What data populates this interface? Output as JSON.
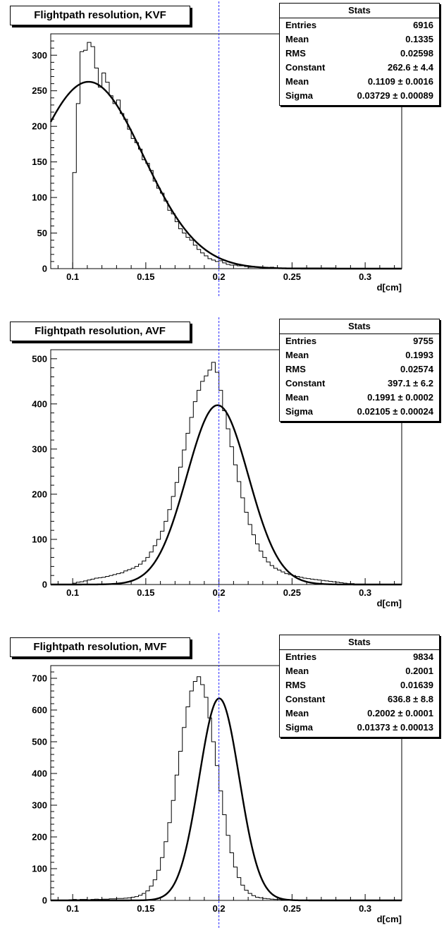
{
  "chart_data": [
    {
      "type": "histogram",
      "title": "Flightpath resolution, KVF",
      "xlabel": "d[cm]",
      "xlim": [
        0.085,
        0.325
      ],
      "ylim": [
        0,
        330
      ],
      "xticks": [
        "0.1",
        "0.15",
        "0.2",
        "0.25",
        "0.3"
      ],
      "yticks": [
        "0",
        "50",
        "100",
        "150",
        "200",
        "250",
        "300"
      ],
      "reference_line_x": 0.2,
      "reference_line_color": "#2a2aff",
      "stats_title": "Stats",
      "stats": [
        {
          "label": "Entries",
          "value": "6916"
        },
        {
          "label": "Mean",
          "value": "0.1335"
        },
        {
          "label": "RMS",
          "value": "0.02598"
        },
        {
          "label": "Constant",
          "value": "262.6 ± 4.4"
        },
        {
          "label": "Mean",
          "value": "0.1109 ± 0.0016"
        },
        {
          "label": "Sigma",
          "value": "0.03729 ± 0.00089"
        }
      ],
      "bin_width": 0.0025,
      "bin_start": 0.0975,
      "counts": [
        0,
        135,
        232,
        305,
        307,
        318,
        312,
        282,
        255,
        275,
        262,
        243,
        232,
        237,
        218,
        210,
        196,
        183,
        177,
        168,
        153,
        148,
        138,
        123,
        113,
        106,
        95,
        82,
        77,
        66,
        56,
        50,
        44,
        40,
        33,
        27,
        22,
        18,
        14,
        12,
        10,
        11,
        8,
        6,
        5,
        5,
        4,
        4,
        3,
        2,
        2,
        2,
        2,
        2,
        1,
        2,
        1,
        1,
        1,
        1,
        1,
        1,
        1,
        1,
        1,
        1,
        1,
        1,
        1,
        1,
        1,
        1,
        1,
        0,
        0,
        0,
        0,
        0,
        0,
        0,
        0,
        0,
        0,
        0,
        0,
        0,
        0,
        0,
        0,
        0
      ],
      "fit": {
        "type": "gaussian",
        "constant": 262.6,
        "mean": 0.1109,
        "sigma": 0.03729,
        "xmin": 0.085,
        "xmax": 0.325
      }
    },
    {
      "type": "histogram",
      "title": "Flightpath resolution, AVF",
      "xlabel": "d[cm]",
      "xlim": [
        0.085,
        0.325
      ],
      "ylim": [
        0,
        520
      ],
      "xticks": [
        "0.1",
        "0.15",
        "0.2",
        "0.25",
        "0.3"
      ],
      "yticks": [
        "0",
        "100",
        "200",
        "300",
        "400",
        "500"
      ],
      "reference_line_x": 0.2,
      "reference_line_color": "#2a2aff",
      "stats_title": "Stats",
      "stats": [
        {
          "label": "Entries",
          "value": "9755"
        },
        {
          "label": "Mean",
          "value": "0.1993"
        },
        {
          "label": "RMS",
          "value": "0.02574"
        },
        {
          "label": "Constant",
          "value": "397.1 ± 6.2"
        },
        {
          "label": "Mean",
          "value": "0.1991 ± 0.0002"
        },
        {
          "label": "Sigma",
          "value": "0.02105 ± 0.00024"
        }
      ],
      "bin_width": 0.0025,
      "bin_start": 0.085,
      "counts": [
        0,
        0,
        0,
        0,
        0,
        0,
        3,
        5,
        6,
        8,
        10,
        12,
        14,
        15,
        16,
        18,
        20,
        22,
        24,
        26,
        30,
        33,
        36,
        40,
        45,
        52,
        60,
        72,
        86,
        100,
        118,
        140,
        166,
        195,
        226,
        260,
        298,
        335,
        370,
        405,
        430,
        450,
        462,
        475,
        492,
        470,
        430,
        385,
        345,
        305,
        265,
        228,
        192,
        160,
        133,
        110,
        90,
        74,
        60,
        50,
        42,
        36,
        32,
        28,
        24,
        22,
        20,
        18,
        16,
        14,
        13,
        12,
        11,
        10,
        9,
        8,
        7,
        6,
        5,
        4,
        3,
        2,
        2,
        1,
        1,
        1,
        0,
        0,
        0,
        0,
        0,
        0,
        0,
        0,
        0,
        0
      ],
      "fit": {
        "type": "gaussian",
        "constant": 397.1,
        "mean": 0.1991,
        "sigma": 0.02105,
        "xmin": 0.085,
        "xmax": 0.325
      }
    },
    {
      "type": "histogram",
      "title": "Flightpath resolution, MVF",
      "xlabel": "d[cm]",
      "xlim": [
        0.085,
        0.325
      ],
      "ylim": [
        0,
        740
      ],
      "xticks": [
        "0.1",
        "0.15",
        "0.2",
        "0.25",
        "0.3"
      ],
      "yticks": [
        "0",
        "100",
        "200",
        "300",
        "400",
        "500",
        "600",
        "700"
      ],
      "reference_line_x": 0.2,
      "reference_line_color": "#2a2aff",
      "stats_title": "Stats",
      "stats": [
        {
          "label": "Entries",
          "value": "9834"
        },
        {
          "label": "Mean",
          "value": "0.2001"
        },
        {
          "label": "RMS",
          "value": "0.01639"
        },
        {
          "label": "Constant",
          "value": "636.8 ± 8.8"
        },
        {
          "label": "Mean",
          "value": "0.2002 ± 0.0001"
        },
        {
          "label": "Sigma",
          "value": "0.01373 ± 0.00013"
        }
      ],
      "bin_width": 0.0025,
      "bin_start": 0.085,
      "counts": [
        0,
        0,
        0,
        0,
        0,
        2,
        3,
        2,
        3,
        3,
        2,
        3,
        4,
        3,
        4,
        4,
        5,
        5,
        6,
        6,
        7,
        8,
        10,
        12,
        16,
        22,
        30,
        45,
        65,
        95,
        135,
        185,
        245,
        315,
        395,
        470,
        545,
        610,
        660,
        690,
        705,
        680,
        640,
        575,
        500,
        425,
        345,
        270,
        205,
        150,
        105,
        72,
        48,
        32,
        22,
        15,
        10,
        8,
        6,
        5,
        4,
        3,
        3,
        2,
        2,
        2,
        1,
        1,
        1,
        1,
        1,
        0,
        0,
        0,
        0,
        0,
        0,
        0,
        0,
        0,
        0,
        0,
        0,
        0,
        0,
        0,
        0,
        0,
        0,
        0,
        0,
        0,
        0,
        0,
        0,
        0
      ],
      "fit": {
        "type": "gaussian",
        "constant": 636.8,
        "mean": 0.2002,
        "sigma": 0.01373,
        "xmin": 0.085,
        "xmax": 0.325
      }
    }
  ]
}
